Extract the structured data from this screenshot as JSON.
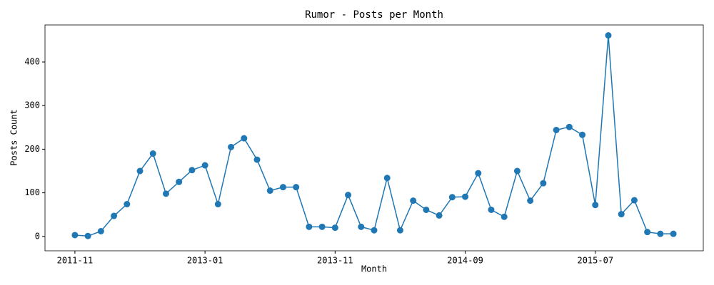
{
  "chart_data": {
    "type": "line",
    "title": "Rumor - Posts per Month",
    "x_label": "Month",
    "y_label": "Posts Count",
    "categories": [
      "2011-11",
      null,
      null,
      null,
      null,
      null,
      null,
      null,
      null,
      null,
      "2013-01",
      null,
      null,
      null,
      null,
      null,
      null,
      null,
      null,
      null,
      "2013-11",
      null,
      null,
      null,
      null,
      null,
      null,
      null,
      null,
      null,
      "2014-09",
      null,
      null,
      null,
      null,
      null,
      null,
      null,
      null,
      null,
      "2015-07",
      null,
      null,
      null,
      null,
      null,
      null
    ],
    "series": [
      {
        "name": "Posts Count",
        "color": "#1f77b4",
        "values": [
          3,
          1,
          12,
          47,
          74,
          150,
          190,
          98,
          125,
          152,
          163,
          74,
          205,
          225,
          176,
          105,
          113,
          113,
          22,
          22,
          20,
          95,
          22,
          14,
          134,
          14,
          82,
          61,
          48,
          90,
          91,
          145,
          61,
          45,
          150,
          82,
          122,
          244,
          251,
          233,
          72,
          461,
          51,
          83,
          10,
          6,
          6
        ]
      }
    ],
    "ylim": [
      -33,
      485
    ],
    "yticks": [
      0,
      100,
      200,
      300,
      400
    ],
    "grid": false
  }
}
